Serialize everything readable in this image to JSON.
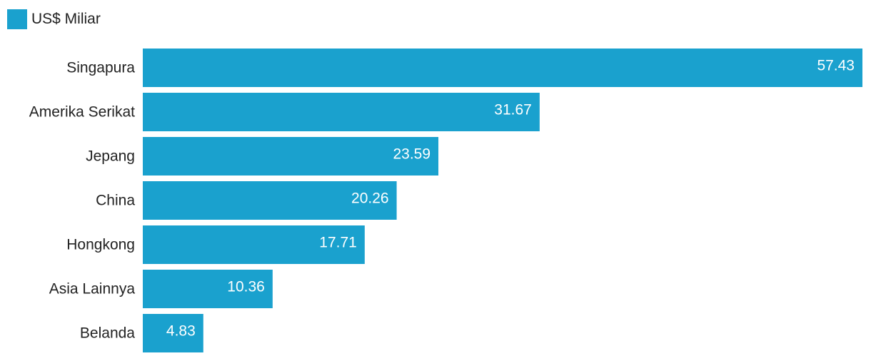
{
  "chart_data": {
    "type": "bar",
    "orientation": "horizontal",
    "categories": [
      "Singapura",
      "Amerika Serikat",
      "Jepang",
      "China",
      "Hongkong",
      "Asia Lainnya",
      "Belanda"
    ],
    "series": [
      {
        "name": "US$ Miliar",
        "values": [
          57.43,
          31.67,
          23.59,
          20.26,
          17.71,
          10.36,
          4.83
        ]
      }
    ],
    "xlim": [
      0,
      57.43
    ],
    "grid": false,
    "legend_position": "top-left",
    "colors": {
      "bar": "#1aa1ce",
      "label": "#222222",
      "value_label": "#ffffff"
    }
  }
}
